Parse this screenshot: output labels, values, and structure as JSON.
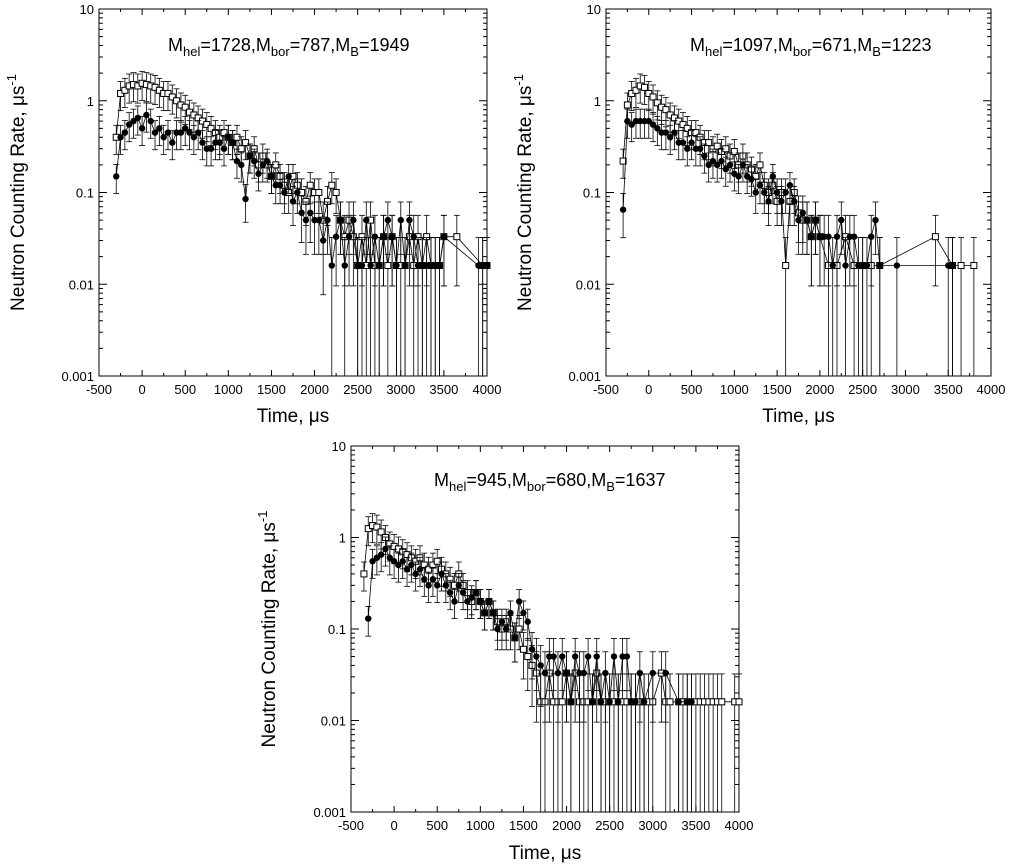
{
  "chart_data": [
    {
      "type": "scatter",
      "xlabel": "Time,  μs",
      "ylabel": "Neutron Counting Rate,  μs",
      "ylabel_sup": "-1",
      "xlim": [
        -500,
        4000
      ],
      "ylim": [
        0.001,
        10
      ],
      "yscale": "log",
      "xticks": [
        -500,
        0,
        500,
        1000,
        1500,
        2000,
        2500,
        3000,
        3500,
        4000
      ],
      "yticks": [
        0.001,
        0.01,
        0.1,
        1,
        10
      ],
      "ytick_labels": [
        "0.001",
        "0.01",
        "0.1",
        "1",
        "10"
      ],
      "annotation": {
        "t1": "M",
        "s1": "hel",
        "t2": "=1728,M",
        "s2": "bor",
        "t3": "=787,M",
        "s3": "B",
        "t4": "=1949"
      },
      "series": [
        {
          "marker": "open-square",
          "x": [
            -300,
            -250,
            -200,
            -150,
            -100,
            -50,
            0,
            50,
            100,
            150,
            200,
            250,
            300,
            350,
            400,
            450,
            500,
            550,
            600,
            650,
            700,
            750,
            800,
            850,
            900,
            950,
            1000,
            1050,
            1100,
            1150,
            1200,
            1250,
            1300,
            1350,
            1400,
            1450,
            1500,
            1550,
            1600,
            1650,
            1700,
            1750,
            1800,
            1850,
            1900,
            1950,
            2000,
            2050,
            2100,
            2150,
            2200,
            2250,
            2300,
            2350,
            2400,
            2450,
            2500,
            2550,
            2600,
            2650,
            2700,
            2750,
            2800,
            2850,
            2900,
            2950,
            3000,
            3050,
            3100,
            3150,
            3200,
            3250,
            3300,
            3350,
            3400,
            3450,
            3500,
            3650,
            3950,
            4000
          ],
          "y": [
            0.4,
            1.2,
            1.3,
            1.45,
            1.5,
            1.45,
            1.55,
            1.5,
            1.45,
            1.4,
            1.3,
            1.2,
            1.2,
            1.1,
            1.0,
            0.9,
            0.85,
            0.75,
            0.7,
            0.65,
            0.6,
            0.55,
            0.5,
            0.45,
            0.4,
            0.45,
            0.4,
            0.35,
            0.4,
            0.3,
            0.35,
            0.25,
            0.3,
            0.2,
            0.25,
            0.2,
            0.15,
            0.2,
            0.15,
            0.12,
            0.1,
            0.15,
            0.12,
            0.1,
            0.08,
            0.12,
            0.1,
            0.1,
            0.05,
            0.08,
            0.12,
            0.1,
            0.05,
            0.033,
            0.05,
            0.033,
            0.016,
            0.033,
            0.016,
            0.05,
            0.016,
            0.016,
            0.033,
            0.016,
            0.033,
            0.016,
            0.016,
            0.016,
            0.033,
            0.016,
            0.033,
            0.016,
            0.033,
            0.016,
            0.016,
            0.016,
            0.033,
            0.033,
            0.016,
            0.016
          ]
        },
        {
          "marker": "filled-circle",
          "x": [
            -300,
            -250,
            -200,
            -150,
            -100,
            -50,
            0,
            50,
            100,
            150,
            200,
            250,
            300,
            350,
            400,
            450,
            500,
            550,
            600,
            650,
            700,
            750,
            800,
            850,
            900,
            950,
            1000,
            1050,
            1100,
            1150,
            1200,
            1250,
            1300,
            1350,
            1400,
            1450,
            1500,
            1550,
            1600,
            1650,
            1700,
            1750,
            1800,
            1850,
            1900,
            1950,
            2000,
            2050,
            2100,
            2150,
            2200,
            2250,
            2300,
            2350,
            2400,
            2450,
            2500,
            2550,
            2600,
            2650,
            2700,
            2750,
            2800,
            2850,
            2900,
            2950,
            3000,
            3050,
            3100,
            3150,
            3200,
            3250,
            3300,
            3350,
            3400,
            3450,
            3500,
            3900,
            3950,
            4000
          ],
          "y": [
            0.15,
            0.4,
            0.45,
            0.55,
            0.6,
            0.65,
            0.5,
            0.7,
            0.6,
            0.45,
            0.5,
            0.4,
            0.45,
            0.35,
            0.45,
            0.45,
            0.5,
            0.45,
            0.4,
            0.45,
            0.35,
            0.3,
            0.3,
            0.35,
            0.35,
            0.3,
            0.4,
            0.35,
            0.22,
            0.2,
            0.085,
            0.25,
            0.22,
            0.16,
            0.2,
            0.22,
            0.15,
            0.12,
            0.12,
            0.1,
            0.15,
            0.08,
            0.1,
            0.06,
            0.05,
            0.06,
            0.05,
            0.05,
            0.03,
            0.05,
            0.016,
            0.033,
            0.05,
            0.016,
            0.033,
            0.05,
            0.016,
            0.016,
            0.05,
            0.016,
            0.033,
            0.016,
            0.033,
            0.05,
            0.033,
            0.016,
            0.05,
            0.016,
            0.05,
            0.033,
            0.016,
            0.016,
            0.016,
            0.016,
            0.016,
            0.016,
            0.033,
            0.016,
            0.016,
            0.016
          ]
        }
      ]
    },
    {
      "type": "scatter",
      "xlabel": "Time,  μs",
      "ylabel": "Neutron Counting Rate,  μs",
      "ylabel_sup": "-1",
      "xlim": [
        -500,
        4000
      ],
      "ylim": [
        0.001,
        10
      ],
      "yscale": "log",
      "xticks": [
        -500,
        0,
        500,
        1000,
        1500,
        2000,
        2500,
        3000,
        3500,
        4000
      ],
      "yticks": [
        0.001,
        0.01,
        0.1,
        1,
        10
      ],
      "ytick_labels": [
        "0.001",
        "0.01",
        "0.1",
        "1",
        "10"
      ],
      "annotation": {
        "t1": "M",
        "s1": "hel",
        "t2": "=1097,M",
        "s2": "bor",
        "t3": "=671,M",
        "s3": "B",
        "t4": "=1223"
      },
      "series": [
        {
          "marker": "open-square",
          "x": [
            -300,
            -250,
            -200,
            -150,
            -100,
            -50,
            0,
            50,
            100,
            150,
            200,
            250,
            300,
            350,
            400,
            450,
            500,
            550,
            600,
            650,
            700,
            750,
            800,
            850,
            900,
            950,
            1000,
            1050,
            1100,
            1150,
            1200,
            1250,
            1300,
            1350,
            1400,
            1450,
            1500,
            1550,
            1600,
            1650,
            1700,
            1750,
            1800,
            1850,
            1900,
            1950,
            2000,
            2100,
            2200,
            2300,
            2400,
            2500,
            2600,
            2700,
            3350,
            3550,
            3650,
            3800
          ],
          "y": [
            0.22,
            0.9,
            1.2,
            1.3,
            1.45,
            1.4,
            1.2,
            1.1,
            0.95,
            0.85,
            0.8,
            0.7,
            0.65,
            0.6,
            0.55,
            0.5,
            0.45,
            0.45,
            0.4,
            0.35,
            0.35,
            0.3,
            0.32,
            0.28,
            0.3,
            0.25,
            0.28,
            0.2,
            0.25,
            0.2,
            0.18,
            0.15,
            0.2,
            0.12,
            0.1,
            0.12,
            0.08,
            0.1,
            0.016,
            0.08,
            0.1,
            0.06,
            0.05,
            0.05,
            0.033,
            0.05,
            0.033,
            0.016,
            0.016,
            0.033,
            0.016,
            0.016,
            0.016,
            0.016,
            0.033,
            0.016,
            0.016,
            0.016
          ]
        },
        {
          "marker": "filled-circle",
          "x": [
            -300,
            -250,
            -200,
            -150,
            -100,
            -50,
            0,
            50,
            100,
            150,
            200,
            250,
            300,
            350,
            400,
            450,
            500,
            550,
            600,
            650,
            700,
            750,
            800,
            850,
            900,
            950,
            1000,
            1050,
            1100,
            1150,
            1200,
            1250,
            1300,
            1350,
            1400,
            1450,
            1500,
            1550,
            1600,
            1650,
            1700,
            1750,
            1800,
            1850,
            1900,
            1950,
            2000,
            2050,
            2100,
            2150,
            2200,
            2250,
            2300,
            2350,
            2400,
            2450,
            2500,
            2550,
            2600,
            2650,
            2700,
            2900,
            3500,
            3550
          ],
          "y": [
            0.065,
            0.6,
            0.55,
            0.6,
            0.6,
            0.6,
            0.6,
            0.55,
            0.5,
            0.45,
            0.45,
            0.4,
            0.45,
            0.35,
            0.35,
            0.3,
            0.35,
            0.3,
            0.3,
            0.25,
            0.2,
            0.22,
            0.2,
            0.22,
            0.18,
            0.2,
            0.16,
            0.15,
            0.2,
            0.15,
            0.14,
            0.1,
            0.12,
            0.1,
            0.08,
            0.15,
            0.1,
            0.08,
            0.1,
            0.12,
            0.08,
            0.05,
            0.06,
            0.05,
            0.033,
            0.05,
            0.033,
            0.033,
            0.033,
            0.016,
            0.033,
            0.05,
            0.016,
            0.033,
            0.033,
            0.016,
            0.016,
            0.016,
            0.033,
            0.05,
            0.016,
            0.016,
            0.016,
            0.016
          ]
        }
      ]
    },
    {
      "type": "scatter",
      "xlabel": "Time,  μs",
      "ylabel": "Neutron Counting Rate,  μs",
      "ylabel_sup": "-1",
      "xlim": [
        -500,
        4000
      ],
      "ylim": [
        0.001,
        10
      ],
      "yscale": "log",
      "xticks": [
        -500,
        0,
        500,
        1000,
        1500,
        2000,
        2500,
        3000,
        3500,
        4000
      ],
      "yticks": [
        0.001,
        0.01,
        0.1,
        1,
        10
      ],
      "ytick_labels": [
        "0.001",
        "0.01",
        "0.1",
        "1",
        "10"
      ],
      "annotation": {
        "t1": "M",
        "s1": "hel",
        "t2": "=945,M",
        "s2": "bor",
        "t3": "=680,M",
        "s3": "B",
        "t4": "=1637"
      },
      "series": [
        {
          "marker": "open-square",
          "x": [
            -350,
            -300,
            -250,
            -200,
            -150,
            -100,
            -50,
            0,
            50,
            100,
            150,
            200,
            250,
            300,
            350,
            400,
            450,
            500,
            550,
            600,
            650,
            700,
            750,
            800,
            850,
            900,
            950,
            1000,
            1050,
            1100,
            1150,
            1200,
            1250,
            1300,
            1350,
            1400,
            1450,
            1500,
            1550,
            1600,
            1650,
            1700,
            1750,
            1800,
            1850,
            1900,
            1950,
            2000,
            2050,
            2100,
            2150,
            2200,
            2250,
            2300,
            2350,
            2400,
            2450,
            2500,
            2550,
            2600,
            2650,
            2700,
            2750,
            2800,
            2850,
            2900,
            2950,
            3000,
            3100,
            3150,
            3200,
            3300,
            3350,
            3400,
            3450,
            3500,
            3550,
            3600,
            3650,
            3700,
            3750,
            3800,
            3950,
            4000
          ],
          "y": [
            0.4,
            1.25,
            1.35,
            1.3,
            1.15,
            1.0,
            0.85,
            0.8,
            0.75,
            0.7,
            0.65,
            0.6,
            0.55,
            0.6,
            0.5,
            0.45,
            0.5,
            0.55,
            0.45,
            0.4,
            0.35,
            0.3,
            0.4,
            0.3,
            0.25,
            0.2,
            0.25,
            0.2,
            0.15,
            0.2,
            0.15,
            0.12,
            0.1,
            0.12,
            0.1,
            0.08,
            0.1,
            0.06,
            0.05,
            0.04,
            0.033,
            0.016,
            0.016,
            0.033,
            0.016,
            0.016,
            0.016,
            0.033,
            0.016,
            0.033,
            0.016,
            0.016,
            0.016,
            0.016,
            0.033,
            0.016,
            0.016,
            0.016,
            0.016,
            0.016,
            0.016,
            0.016,
            0.016,
            0.016,
            0.016,
            0.016,
            0.016,
            0.016,
            0.033,
            0.016,
            0.016,
            0.016,
            0.016,
            0.016,
            0.016,
            0.016,
            0.016,
            0.016,
            0.016,
            0.016,
            0.016,
            0.016,
            0.016,
            0.016
          ]
        },
        {
          "marker": "filled-circle",
          "x": [
            -300,
            -250,
            -200,
            -150,
            -100,
            -50,
            0,
            50,
            100,
            150,
            200,
            250,
            300,
            350,
            400,
            450,
            500,
            550,
            600,
            650,
            700,
            750,
            800,
            850,
            900,
            950,
            1000,
            1050,
            1100,
            1150,
            1200,
            1250,
            1300,
            1350,
            1400,
            1450,
            1500,
            1550,
            1600,
            1650,
            1700,
            1750,
            1800,
            1850,
            1900,
            1950,
            2000,
            2050,
            2100,
            2150,
            2200,
            2250,
            2300,
            2350,
            2400,
            2450,
            2500,
            2550,
            2600,
            2650,
            2700,
            2750,
            2800,
            2850,
            2900,
            3000,
            3150,
            3300,
            3400,
            3450
          ],
          "y": [
            0.13,
            0.55,
            0.6,
            0.65,
            0.75,
            0.6,
            0.55,
            0.5,
            0.55,
            0.45,
            0.5,
            0.4,
            0.45,
            0.35,
            0.3,
            0.35,
            0.3,
            0.4,
            0.3,
            0.25,
            0.2,
            0.3,
            0.25,
            0.2,
            0.22,
            0.25,
            0.2,
            0.15,
            0.2,
            0.15,
            0.1,
            0.12,
            0.1,
            0.15,
            0.08,
            0.2,
            0.15,
            0.12,
            0.06,
            0.05,
            0.04,
            0.033,
            0.05,
            0.05,
            0.033,
            0.05,
            0.033,
            0.016,
            0.05,
            0.033,
            0.033,
            0.05,
            0.016,
            0.05,
            0.016,
            0.033,
            0.016,
            0.05,
            0.016,
            0.05,
            0.05,
            0.016,
            0.016,
            0.033,
            0.016,
            0.033,
            0.033,
            0.016,
            0.016,
            0.016
          ]
        }
      ]
    }
  ]
}
